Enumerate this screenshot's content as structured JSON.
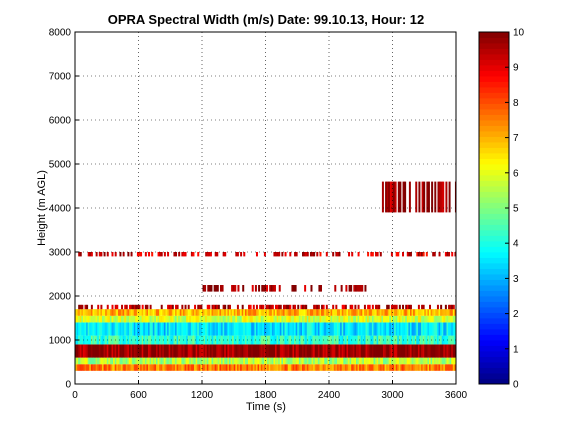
{
  "chart_data": {
    "type": "heatmap",
    "title": "OPRA Spectral Width (m/s)  Date: 99.10.13, Hour: 12",
    "xlabel": "Time (s)",
    "ylabel": "Height (m AGL)",
    "xlim": [
      0,
      3600
    ],
    "ylim": [
      0,
      8000
    ],
    "x_ticks": [
      0,
      600,
      1200,
      1800,
      2400,
      3000,
      3600
    ],
    "y_ticks": [
      0,
      1000,
      2000,
      3000,
      4000,
      5000,
      6000,
      7000,
      8000
    ],
    "grid": "dotted",
    "colorbar": {
      "colormap": "jet",
      "clim": [
        0,
        10
      ],
      "ticks": [
        0,
        1,
        2,
        3,
        4,
        5,
        6,
        7,
        8,
        9,
        10
      ],
      "placement": "right"
    },
    "layers": [
      {
        "height_range": [
          300,
          450
        ],
        "value": 7.5,
        "x_range": [
          0,
          3600
        ]
      },
      {
        "height_range": [
          450,
          600
        ],
        "value": 5.5,
        "x_range": [
          0,
          3600
        ]
      },
      {
        "height_range": [
          600,
          900
        ],
        "value": 9.8,
        "x_range": [
          0,
          3600
        ]
      },
      {
        "height_range": [
          900,
          1100
        ],
        "value": 4.2,
        "x_range": [
          0,
          3600
        ]
      },
      {
        "height_range": [
          1100,
          1400
        ],
        "value": 3.5,
        "x_range": [
          0,
          3600
        ]
      },
      {
        "height_range": [
          1400,
          1550
        ],
        "value": 5.8,
        "x_range": [
          0,
          3600
        ]
      },
      {
        "height_range": [
          1550,
          1700
        ],
        "value": 7.0,
        "x_range": [
          0,
          3600
        ]
      },
      {
        "height_range": [
          1700,
          1800
        ],
        "value": 9.5,
        "x_range": [
          0,
          3600
        ]
      },
      {
        "height_range": [
          2100,
          2250
        ],
        "value": 9.8,
        "x_range": [
          1100,
          2800
        ]
      },
      {
        "height_range": [
          2900,
          3000
        ],
        "value": 9.2,
        "x_range": [
          0,
          3600
        ]
      },
      {
        "height_range": [
          3900,
          4600
        ],
        "value": 9.8,
        "x_range": [
          2900,
          3600
        ]
      }
    ]
  }
}
